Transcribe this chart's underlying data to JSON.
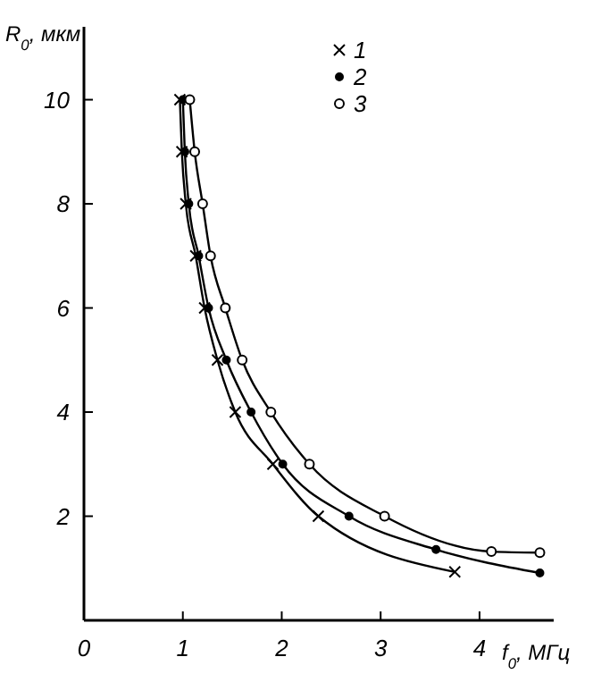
{
  "chart_data": {
    "type": "line",
    "xlabel": "f$_{0}$, МГц",
    "ylabel": "R$_{0}$, мкм",
    "xlim": [
      0,
      4.75
    ],
    "ylim": [
      0,
      11.4
    ],
    "xticks": [
      0,
      1,
      2,
      3,
      4
    ],
    "yticks": [
      2,
      4,
      6,
      8,
      10
    ],
    "legend": "top right",
    "grid": false,
    "line_style": "solid",
    "series": [
      {
        "name": "1",
        "color": "#000000",
        "marker": "cross",
        "x": [
          0.97,
          0.99,
          1.03,
          1.13,
          1.22,
          1.35,
          1.53,
          1.91,
          2.37,
          3.75
        ],
        "values": [
          10,
          9,
          8,
          7,
          6,
          5,
          4,
          3,
          2,
          0.93
        ]
      },
      {
        "name": "2",
        "color": "#000000",
        "marker": "circle",
        "x": [
          1.0,
          1.02,
          1.06,
          1.16,
          1.26,
          1.44,
          1.69,
          2.01,
          2.68,
          3.56,
          4.61
        ],
        "values": [
          10,
          9,
          8,
          7,
          6,
          5,
          4,
          3,
          2,
          1.36,
          0.91
        ]
      },
      {
        "name": "3",
        "color": "#000000",
        "marker": "circle-open",
        "x": [
          1.07,
          1.12,
          1.2,
          1.28,
          1.43,
          1.6,
          1.89,
          2.28,
          3.04,
          4.12,
          4.61
        ],
        "values": [
          10,
          9,
          8,
          7,
          6,
          5,
          4,
          3,
          2,
          1.32,
          1.3
        ]
      }
    ]
  }
}
